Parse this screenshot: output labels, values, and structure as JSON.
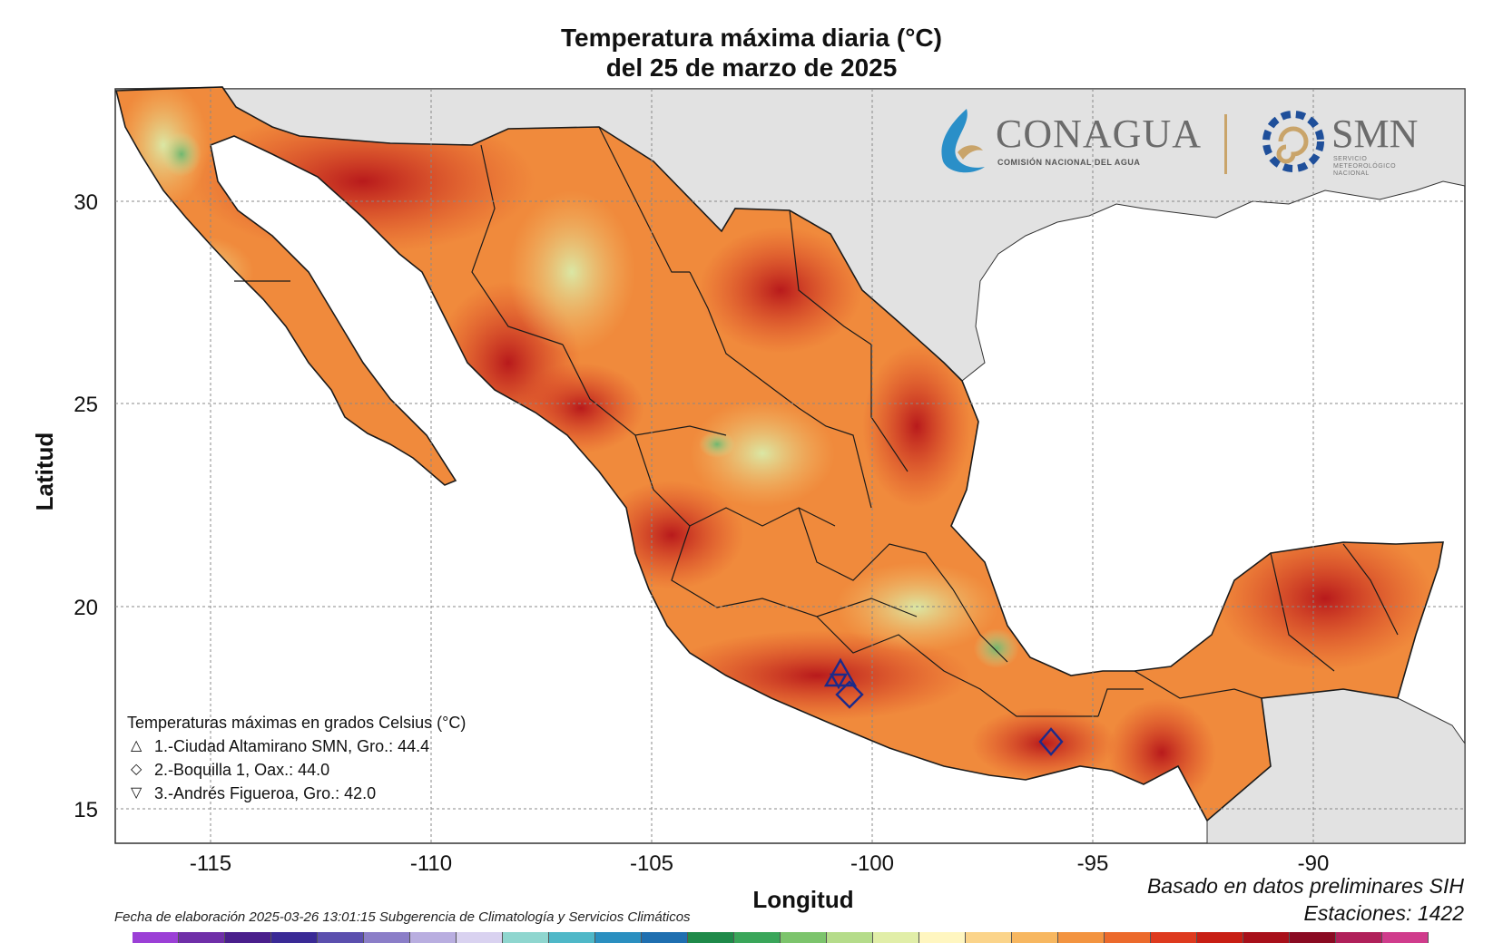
{
  "title": {
    "line1": "Temperatura máxima diaria (°C)",
    "line2": "del 25 de marzo de 2025"
  },
  "axes": {
    "x_label": "Longitud",
    "y_label": "Latitud",
    "x_ticks": [
      "-115",
      "-110",
      "-105",
      "-100",
      "-95",
      "-90"
    ],
    "y_ticks": [
      "30",
      "25",
      "20",
      "15"
    ]
  },
  "legend": {
    "title": "Temperaturas máximas en grados Celsius (°C)",
    "items": [
      {
        "symbol": "△",
        "text": "1.-Ciudad Altamirano SMN, Gro.: 44.4"
      },
      {
        "symbol": "◇",
        "text": "2.-Boquilla 1, Oax.: 44.0"
      },
      {
        "symbol": "▽",
        "text": "3.-Andrés Figueroa, Gro.: 42.0"
      }
    ]
  },
  "source": {
    "line1": "Basado en datos preliminares SIH",
    "line2": "Estaciones:  1422"
  },
  "fecha": "Fecha de elaboración 2025-03-26 13:01:15 Subgerencia de Climatología y Servicios Climáticos",
  "logos": {
    "conagua_name": "CONAGUA",
    "conagua_sub": "COMISIÓN NACIONAL DEL AGUA",
    "smn_name": "SMN",
    "smn_sub": "SERVICIO METEOROLÓGICO NACIONAL"
  },
  "colors": {
    "ocean": "#ffffff",
    "neighbor_land": "#e2e2e2",
    "hot_dark": "#c81e14",
    "hot": "#e8502a",
    "warm": "#f39a4a",
    "mild": "#f7c36b",
    "cool": "#e9efb0",
    "cooler": "#a7d58c"
  },
  "colorbar": [
    "#9b3fd6",
    "#6f2fa8",
    "#4a1f8c",
    "#3a2a96",
    "#5b4fae",
    "#8b7ec8",
    "#b9aee0",
    "#d9d2f0",
    "#8fd6cf",
    "#4fb8c8",
    "#2a8fc0",
    "#1f6fb0",
    "#1f8a4a",
    "#3aa65a",
    "#7cc46c",
    "#b5dc8a",
    "#e1eea8",
    "#fff6c0",
    "#fbd48a",
    "#f7b760",
    "#f39440",
    "#ec6a2c",
    "#de3a1e",
    "#c81e14",
    "#a8101a",
    "#8a0a22",
    "#b0205a",
    "#d03c8c"
  ]
}
